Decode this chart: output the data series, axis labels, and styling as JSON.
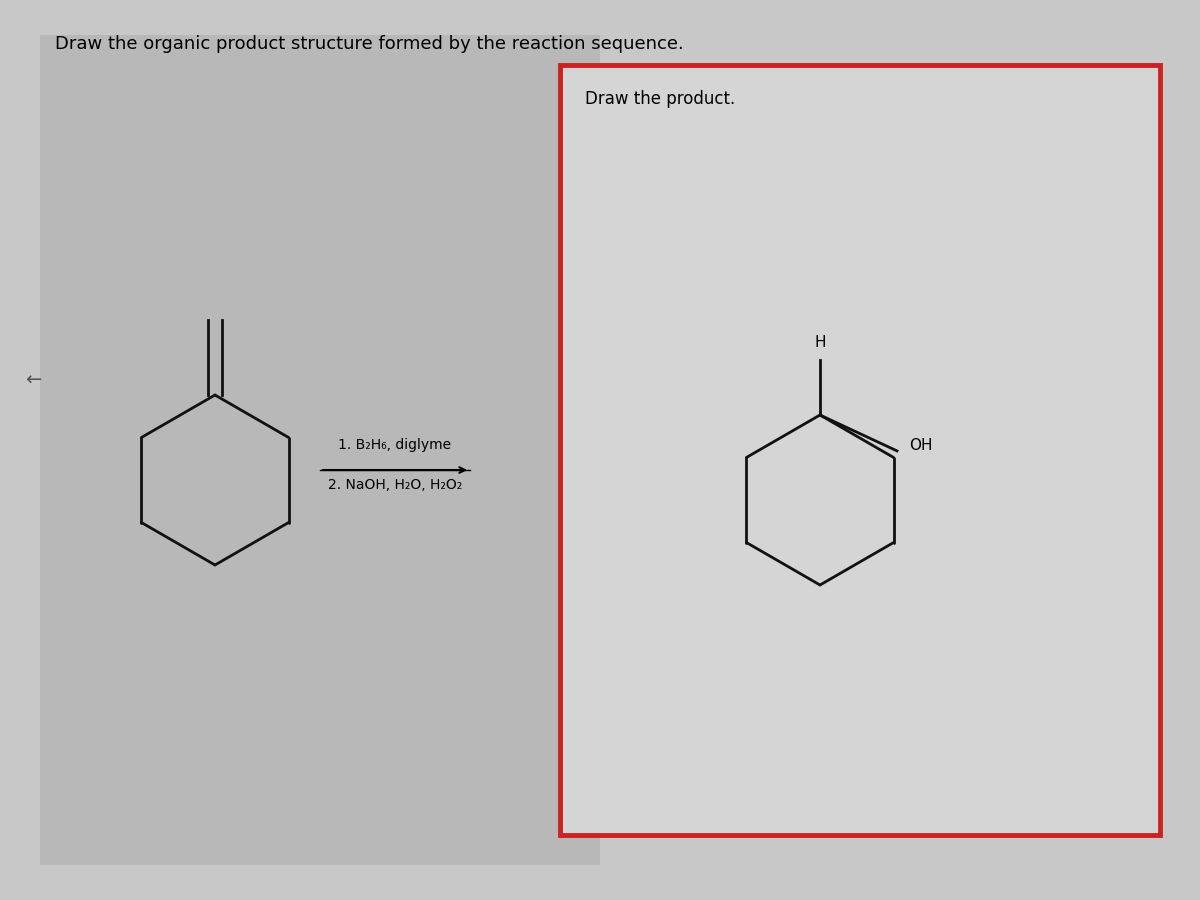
{
  "title": "Draw the organic product structure formed by the reaction sequence.",
  "draw_product_label": "Draw the product.",
  "reagent1": "1. B₂H₆, diglyme",
  "reagent2": "2. NaOH, H₂O, H₂O₂",
  "bg_color": "#c8c8c8",
  "left_bg": "#c0c0c0",
  "right_bg": "#d9d9d9",
  "right_border": "#cc2222",
  "line_color": "#111111",
  "line_width": 2.0,
  "title_fontsize": 13,
  "label_fontsize": 12,
  "reagent_fontsize": 10
}
